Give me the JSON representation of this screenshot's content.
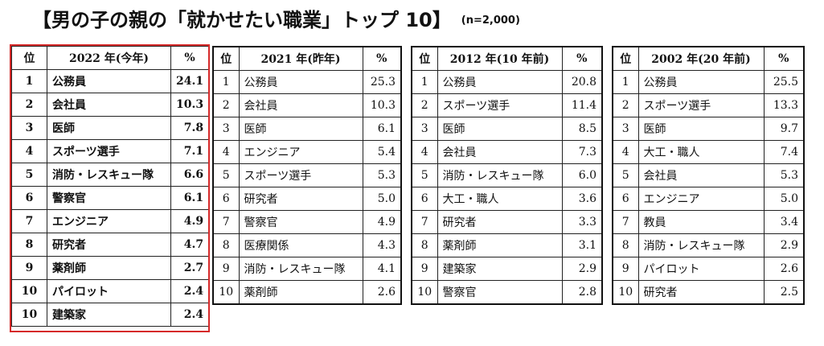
{
  "title": "【男の子の親の「就かせたい職業」トップ 10】",
  "subtitle": "(n=2,000)",
  "highlight_color": "#d62a2a",
  "tables": [
    {
      "h_pos": "位",
      "h_year": "2022 年(今年)",
      "h_pct": "%",
      "rows": [
        {
          "rank": "1",
          "job": "公務員",
          "pct": "24.1"
        },
        {
          "rank": "2",
          "job": "会社員",
          "pct": "10.3"
        },
        {
          "rank": "3",
          "job": "医師",
          "pct": "7.8"
        },
        {
          "rank": "4",
          "job": "スポーツ選手",
          "pct": "7.1"
        },
        {
          "rank": "5",
          "job": "消防・レスキュー隊",
          "pct": "6.6"
        },
        {
          "rank": "6",
          "job": "警察官",
          "pct": "6.1"
        },
        {
          "rank": "7",
          "job": "エンジニア",
          "pct": "4.9"
        },
        {
          "rank": "8",
          "job": "研究者",
          "pct": "4.7"
        },
        {
          "rank": "9",
          "job": "薬剤師",
          "pct": "2.7"
        },
        {
          "rank": "10",
          "job": "パイロット",
          "pct": "2.4"
        },
        {
          "rank": "10",
          "job": "建築家",
          "pct": "2.4"
        }
      ]
    },
    {
      "h_pos": "位",
      "h_year": "2021 年(昨年)",
      "h_pct": "%",
      "rows": [
        {
          "rank": "1",
          "job": "公務員",
          "pct": "25.3"
        },
        {
          "rank": "2",
          "job": "会社員",
          "pct": "10.3"
        },
        {
          "rank": "3",
          "job": "医師",
          "pct": "6.1"
        },
        {
          "rank": "4",
          "job": "エンジニア",
          "pct": "5.4"
        },
        {
          "rank": "5",
          "job": "スポーツ選手",
          "pct": "5.3"
        },
        {
          "rank": "6",
          "job": "研究者",
          "pct": "5.0"
        },
        {
          "rank": "7",
          "job": "警察官",
          "pct": "4.9"
        },
        {
          "rank": "8",
          "job": "医療関係",
          "pct": "4.3"
        },
        {
          "rank": "9",
          "job": "消防・レスキュー隊",
          "pct": "4.1"
        },
        {
          "rank": "10",
          "job": "薬剤師",
          "pct": "2.6"
        }
      ]
    },
    {
      "h_pos": "位",
      "h_year": "2012 年(10 年前)",
      "h_pct": "%",
      "rows": [
        {
          "rank": "1",
          "job": "公務員",
          "pct": "20.8"
        },
        {
          "rank": "2",
          "job": "スポーツ選手",
          "pct": "11.4"
        },
        {
          "rank": "3",
          "job": "医師",
          "pct": "8.5"
        },
        {
          "rank": "4",
          "job": "会社員",
          "pct": "7.3"
        },
        {
          "rank": "5",
          "job": "消防・レスキュー隊",
          "pct": "6.0"
        },
        {
          "rank": "6",
          "job": "大工・職人",
          "pct": "3.6"
        },
        {
          "rank": "7",
          "job": "研究者",
          "pct": "3.3"
        },
        {
          "rank": "8",
          "job": "薬剤師",
          "pct": "3.1"
        },
        {
          "rank": "9",
          "job": "建築家",
          "pct": "2.9"
        },
        {
          "rank": "10",
          "job": "警察官",
          "pct": "2.8"
        }
      ]
    },
    {
      "h_pos": "位",
      "h_year": "2002 年(20 年前)",
      "h_pct": "%",
      "rows": [
        {
          "rank": "1",
          "job": "公務員",
          "pct": "25.5"
        },
        {
          "rank": "2",
          "job": "スポーツ選手",
          "pct": "13.3"
        },
        {
          "rank": "3",
          "job": "医師",
          "pct": "9.7"
        },
        {
          "rank": "4",
          "job": "大工・職人",
          "pct": "7.4"
        },
        {
          "rank": "5",
          "job": "会社員",
          "pct": "5.3"
        },
        {
          "rank": "6",
          "job": "エンジニア",
          "pct": "5.0"
        },
        {
          "rank": "7",
          "job": "教員",
          "pct": "3.4"
        },
        {
          "rank": "8",
          "job": "消防・レスキュー隊",
          "pct": "2.9"
        },
        {
          "rank": "9",
          "job": "パイロット",
          "pct": "2.6"
        },
        {
          "rank": "10",
          "job": "研究者",
          "pct": "2.5"
        }
      ]
    }
  ]
}
